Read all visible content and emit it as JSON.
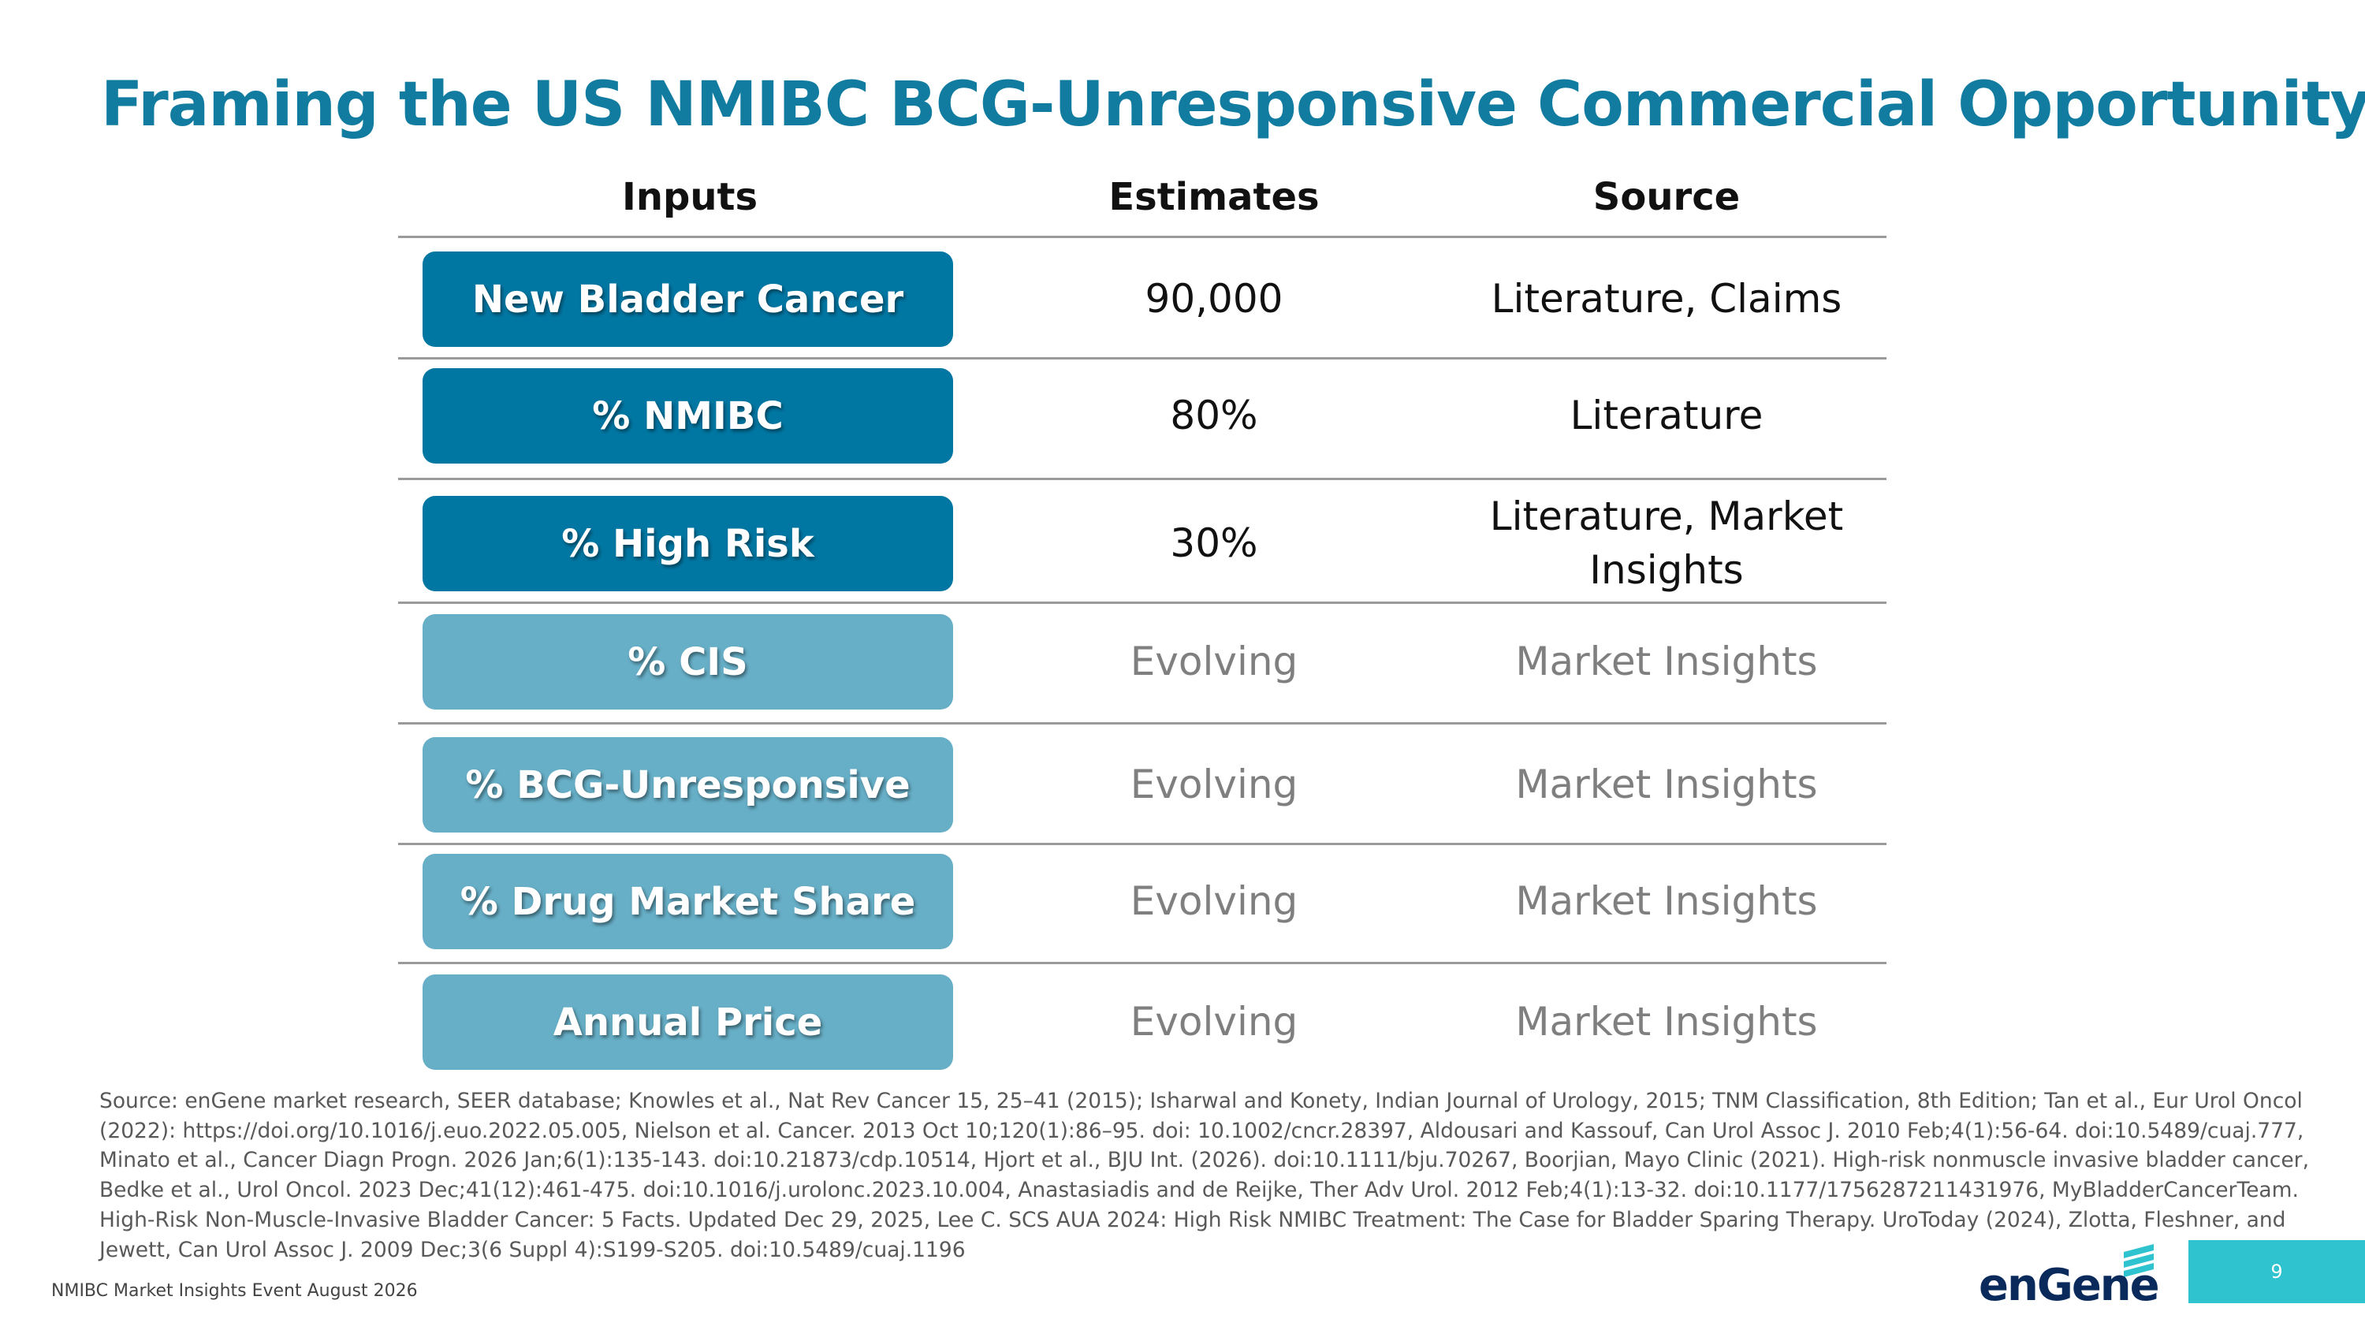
{
  "header": {
    "title": "Framing the US NMIBC BCG-Unresponsive Commercial Opportunity"
  },
  "table": {
    "columns": [
      "Inputs",
      "Estimates",
      "Source"
    ],
    "rows": [
      {
        "input": "New Bladder Cancer",
        "estimate": "90,000",
        "source": "Literature, Claims",
        "pill_color": "#0077a3",
        "text_color": "#111111"
      },
      {
        "input": "% NMIBC",
        "estimate": "80%",
        "source": "Literature",
        "pill_color": "#0077a3",
        "text_color": "#111111"
      },
      {
        "input": "% High Risk",
        "estimate": "30%",
        "source": "Literature, Market Insights",
        "pill_color": "#0077a3",
        "text_color": "#111111"
      },
      {
        "input": "% CIS",
        "estimate": "Evolving",
        "source": "Market Insights",
        "pill_color": "#67afc7",
        "text_color": "#7f7f7f"
      },
      {
        "input": "% BCG-Unresponsive",
        "estimate": "Evolving",
        "source": "Market Insights",
        "pill_color": "#67afc7",
        "text_color": "#7f7f7f"
      },
      {
        "input": "% Drug Market Share",
        "estimate": "Evolving",
        "source": "Market Insights",
        "pill_color": "#67afc7",
        "text_color": "#7f7f7f"
      },
      {
        "input": "Annual Price",
        "estimate": "Evolving",
        "source": "Market Insights",
        "pill_color": "#67afc7",
        "text_color": "#7f7f7f"
      }
    ]
  },
  "footnote": "Source: enGene market research, SEER database; Knowles et al., Nat Rev Cancer 15, 25–41 (2015); Isharwal and Konety, Indian Journal of Urology, 2015; TNM Classification, 8th Edition; Tan et al., Eur Urol Oncol (2022): https://doi.org/10.1016/j.euo.2022.05.005, Nielson et al. Cancer. 2013 Oct 10;120(1):86–95. doi: 10.1002/cncr.28397, Aldousari and Kassouf, Can Urol Assoc J. 2010 Feb;4(1):56-64. doi:10.5489/cuaj.777, Minato et al., Cancer Diagn Progn. 2026 Jan;6(1):135-143. doi:10.21873/cdp.10514, Hjort et al., BJU Int. (2026). doi:10.1111/bju.70267, Boorjian, Mayo Clinic (2021). High-risk nonmuscle invasive bladder cancer, Bedke et al., Urol Oncol. 2023 Dec;41(12):461-475. doi:10.1016/j.urolonc.2023.10.004, Anastasiadis and de Reijke, Ther Adv Urol. 2012 Feb;4(1):13-32. doi:10.1177/1756287211431976, MyBladderCancerTeam. High-Risk Non-Muscle-Invasive Bladder Cancer: 5 Facts. Updated Dec 29, 2025, Lee C. SCS AUA 2024: High Risk NMIBC Treatment: The Case for Bladder Sparing Therapy. UroToday (2024), Zlotta, Fleshner, and Jewett, Can Urol Assoc J. 2009 Dec;3(6 Suppl 4):S199-S205. doi:10.5489/cuaj.1196",
  "footer": {
    "event": "NMIBC Market Insights Event August 2026",
    "logo": "enGene",
    "page_number": "9"
  }
}
